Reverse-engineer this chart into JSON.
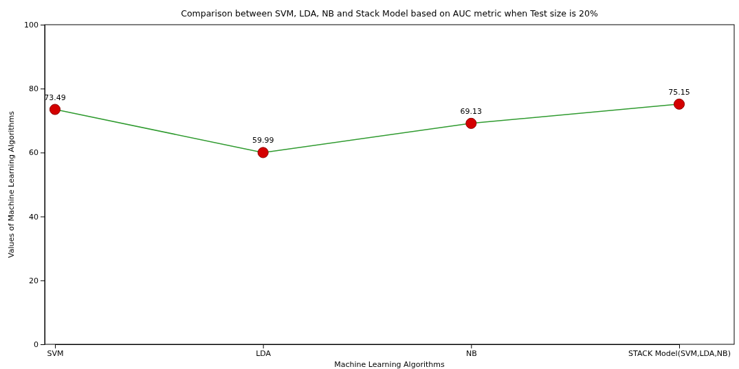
{
  "chart_data": {
    "type": "line",
    "title": "Comparison between SVM, LDA, NB and Stack Model based on AUC metric when Test size is 20%",
    "xlabel": "Machine Learning Algorithms",
    "ylabel": "Values of Machine Learning Algorithms",
    "categories": [
      "SVM",
      "LDA",
      "NB",
      "STACK Model(SVM,LDA,NB)"
    ],
    "series": [
      {
        "color": "#2e9a2e",
        "values": [
          73.49,
          59.99,
          69.13,
          75.15
        ]
      }
    ],
    "ylim": [
      0,
      100
    ],
    "yticks": [
      0,
      20,
      40,
      60,
      80,
      100
    ],
    "marker": "circle",
    "line_style": "solid",
    "data_labels": true
  }
}
